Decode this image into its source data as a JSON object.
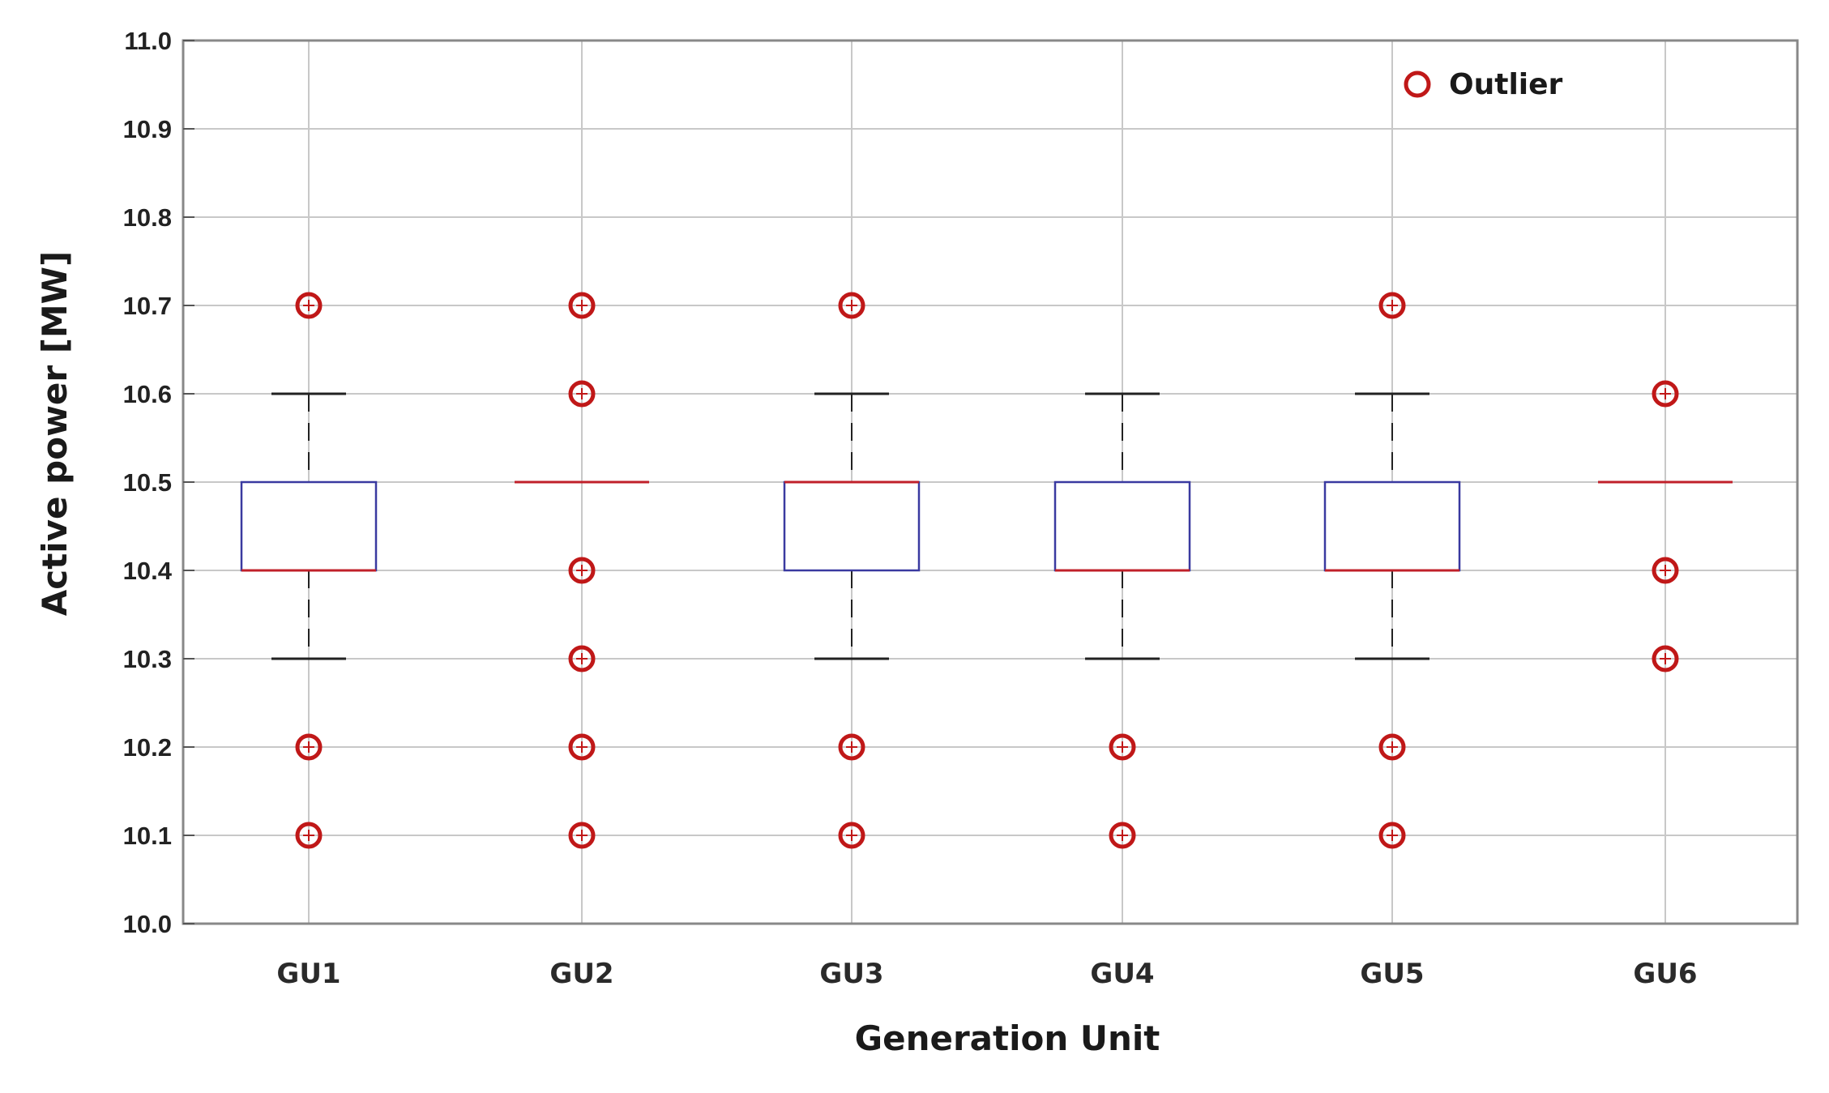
{
  "chart_data": {
    "type": "box",
    "xlabel": "Generation Unit",
    "ylabel": "Active power [MW]",
    "ylim": [
      10.0,
      11.0
    ],
    "yticks": [
      10.0,
      10.1,
      10.2,
      10.3,
      10.4,
      10.5,
      10.6,
      10.7,
      10.8,
      10.9,
      11.0
    ],
    "ytick_labels": [
      "10.0",
      "10.1",
      "10.2",
      "10.3",
      "10.4",
      "10.5",
      "10.6",
      "10.7",
      "10.8",
      "10.9",
      "11.0"
    ],
    "categories": [
      "GU1",
      "GU2",
      "GU3",
      "GU4",
      "GU5",
      "GU6"
    ],
    "grid": true,
    "legend": {
      "placement": "top-right",
      "entries": [
        "Outlier"
      ]
    },
    "boxes": [
      {
        "category": "GU1",
        "q1": 10.4,
        "median": 10.4,
        "q3": 10.5,
        "whisker_low": 10.3,
        "whisker_high": 10.6,
        "outliers": [
          10.7,
          10.2,
          10.1
        ]
      },
      {
        "category": "GU2",
        "q1": 10.5,
        "median": 10.5,
        "q3": 10.5,
        "whisker_low": 10.5,
        "whisker_high": 10.5,
        "outliers": [
          10.7,
          10.6,
          10.4,
          10.3,
          10.2,
          10.1
        ]
      },
      {
        "category": "GU3",
        "q1": 10.4,
        "median": 10.5,
        "q3": 10.5,
        "whisker_low": 10.3,
        "whisker_high": 10.6,
        "outliers": [
          10.7,
          10.2,
          10.1
        ]
      },
      {
        "category": "GU4",
        "q1": 10.4,
        "median": 10.4,
        "q3": 10.5,
        "whisker_low": 10.3,
        "whisker_high": 10.6,
        "outliers": [
          10.2,
          10.1
        ]
      },
      {
        "category": "GU5",
        "q1": 10.4,
        "median": 10.4,
        "q3": 10.5,
        "whisker_low": 10.3,
        "whisker_high": 10.6,
        "outliers": [
          10.7,
          10.2,
          10.1
        ]
      },
      {
        "category": "GU6",
        "q1": 10.5,
        "median": 10.5,
        "q3": 10.5,
        "whisker_low": 10.5,
        "whisker_high": 10.5,
        "outliers": [
          10.6,
          10.4,
          10.3
        ]
      }
    ],
    "colors": {
      "box": "#3a3aa0",
      "median": "#c0202a",
      "whisker": "#222222",
      "outlier": "#c01818",
      "grid": "#c8c8c8",
      "frame": "#888888"
    }
  }
}
